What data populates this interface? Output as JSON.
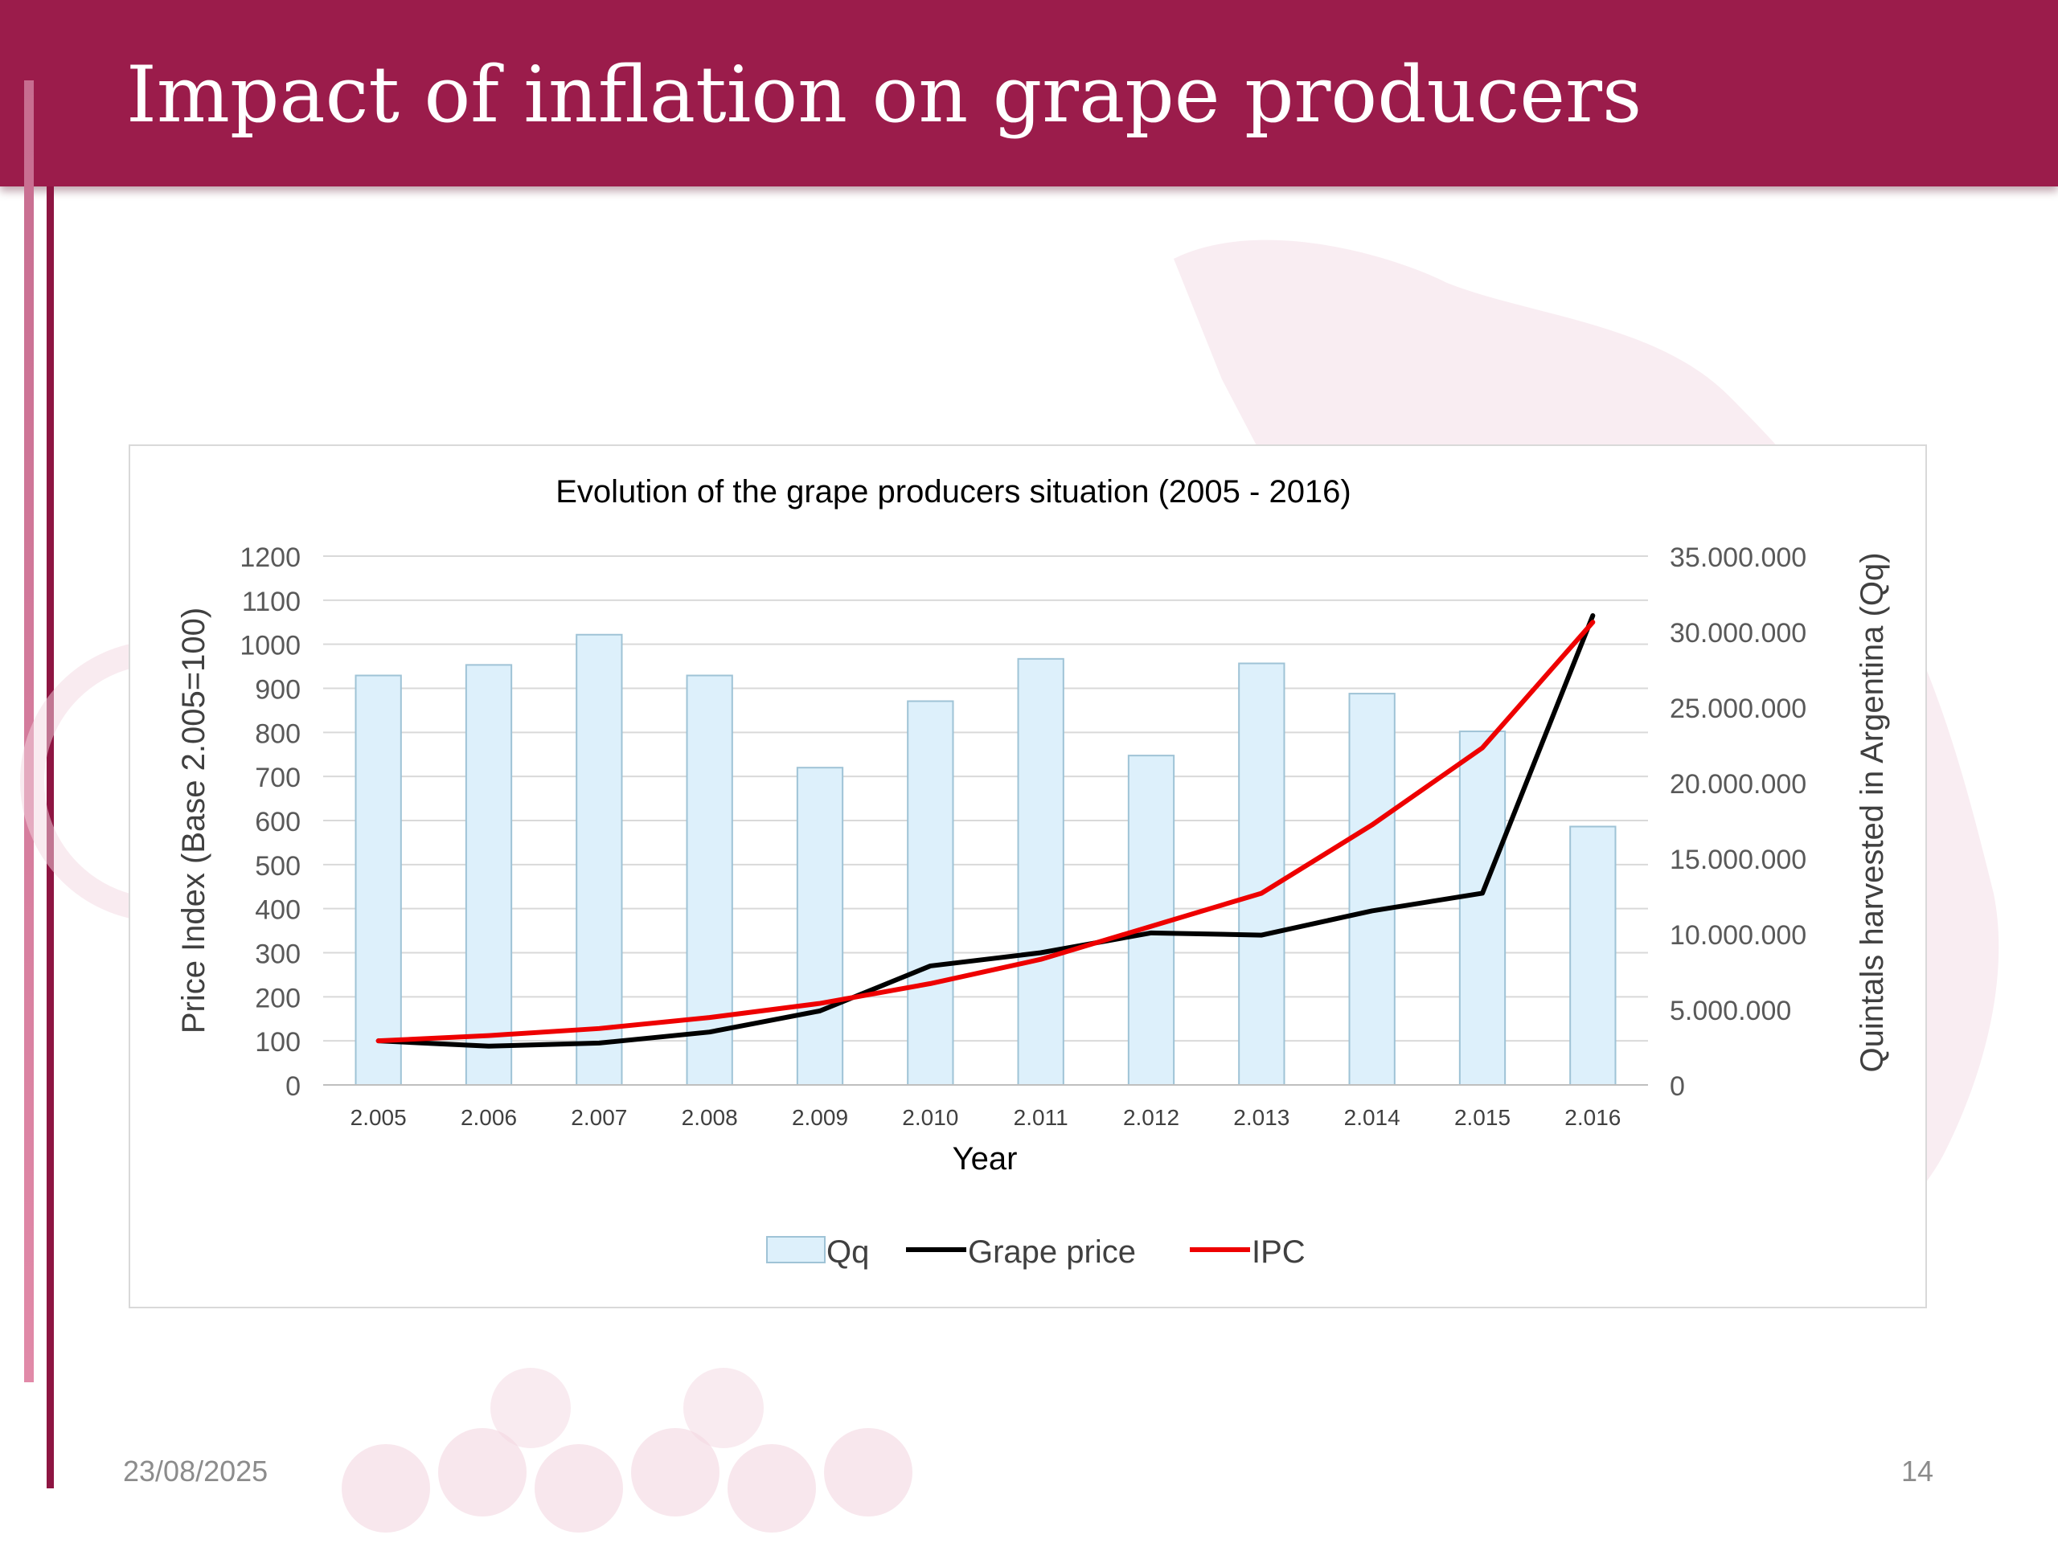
{
  "slide": {
    "title": "Impact of inflation on grape producers",
    "date": "23/08/2025",
    "page_number": "14",
    "accent_color": "#9b1c4b"
  },
  "chart_data": {
    "type": "bar+line",
    "title": "Evolution of the grape producers situation (2005 - 2016)",
    "xlabel": "Year",
    "ylabel_left": "Price Index (Base 2.005=100)",
    "ylabel_right": "Quintals harvested in Argentina  (Qq)",
    "categories": [
      "2.005",
      "2.006",
      "2.007",
      "2.008",
      "2.009",
      "2.010",
      "2.011",
      "2.012",
      "2.013",
      "2.014",
      "2.015",
      "2.016"
    ],
    "left_axis": {
      "min": 0,
      "max": 1200,
      "ticks": [
        "0",
        "100",
        "200",
        "300",
        "400",
        "500",
        "600",
        "700",
        "800",
        "900",
        "1000",
        "1100",
        "1200"
      ]
    },
    "right_axis": {
      "min": 0,
      "max": 35000000,
      "ticks": [
        "0",
        "5.000.000",
        "10.000.000",
        "15.000.000",
        "20.000.000",
        "25.000.000",
        "30.000.000",
        "35.000.000"
      ]
    },
    "series": [
      {
        "name": "Qq",
        "kind": "bar",
        "axis": "right",
        "color": "#ddf0fb",
        "stroke": "#9fc3d6",
        "values": [
          27100000,
          27800000,
          29800000,
          27100000,
          21000000,
          25400000,
          28200000,
          21800000,
          27900000,
          25900000,
          23400000,
          17100000
        ]
      },
      {
        "name": "Grape price",
        "kind": "line",
        "axis": "left",
        "color": "#000000",
        "values": [
          100,
          88,
          95,
          120,
          168,
          270,
          300,
          345,
          340,
          395,
          435,
          1065
        ]
      },
      {
        "name": "IPC",
        "kind": "line",
        "axis": "left",
        "color": "#ee0000",
        "values": [
          100,
          112,
          128,
          153,
          185,
          230,
          285,
          360,
          435,
          590,
          765,
          1050
        ]
      }
    ],
    "grid": true,
    "legend_position": "bottom"
  }
}
